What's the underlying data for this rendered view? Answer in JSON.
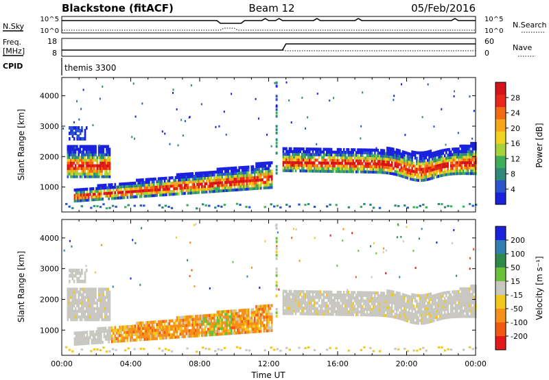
{
  "header": {
    "station": "Blackstone (fitACF)",
    "beam": "Beam 12",
    "date": "05/Feb/2016"
  },
  "strip_labels": {
    "nsky": "N.Sky",
    "nsearch": "N.Search",
    "freq_line1": "Freq.",
    "freq_line2": "[MHz]",
    "nave": "Nave",
    "cpid": "CPID",
    "cpid_value": "themis 3300",
    "left_ticks_nsky": [
      "10^5",
      "10^0"
    ],
    "right_ticks_nsearch": [
      "10^5",
      "10^0"
    ],
    "left_ticks_freq": [
      "18",
      "8"
    ],
    "right_ticks_nave": [
      "60",
      "0"
    ]
  },
  "chart_data": [
    {
      "type": "heatmap",
      "name": "power-panel",
      "ylabel": "Slant Range [km]",
      "xlabel": "",
      "ylim": [
        180,
        4600
      ],
      "yticks": [
        "1000",
        "2000",
        "3000",
        "4000"
      ],
      "xlim_hours": [
        0,
        24
      ],
      "colorbar": {
        "label": "Power [dB]",
        "ticks": [
          "4",
          "8",
          "12",
          "16",
          "20",
          "24",
          "28"
        ],
        "range": [
          0,
          32
        ],
        "colors": [
          "#1a22dd",
          "#2a55cc",
          "#2f8a7a",
          "#3fae5a",
          "#a8d23a",
          "#f2d21e",
          "#f7a51a",
          "#f26a12",
          "#e8261a",
          "#d4141a"
        ]
      },
      "bands": [
        {
          "t0": 0.3,
          "t1": 2.8,
          "r_start": [
            1300,
            2300
          ],
          "r_end": [
            1300,
            2300
          ],
          "note_value": [
            6,
            28
          ]
        },
        {
          "t0": 0.7,
          "t1": 12.2,
          "r_start": [
            500,
            900
          ],
          "r_end": [
            950,
            1800
          ],
          "note_value": [
            6,
            30
          ]
        },
        {
          "t0": 12.8,
          "t1": 24,
          "r_start": [
            1500,
            2250
          ],
          "r_end": [
            1400,
            2250
          ],
          "note_value": [
            4,
            26
          ]
        }
      ]
    },
    {
      "type": "heatmap",
      "name": "velocity-panel",
      "ylabel": "Slant Range [km]",
      "xlabel": "Time UT",
      "ylim": [
        180,
        4600
      ],
      "yticks": [
        "1000",
        "2000",
        "3000",
        "4000"
      ],
      "xticks": [
        "00:00",
        "04:00",
        "08:00",
        "12:00",
        "16:00",
        "20:00",
        "00:00"
      ],
      "xlim_hours": [
        0,
        24
      ],
      "colorbar": {
        "label": "Velocity [m s⁻¹]",
        "ticks": [
          "200",
          "100",
          "50",
          "15",
          "-15",
          "-50",
          "-100",
          "-200"
        ],
        "colors": [
          "#1a22dd",
          "#2f7fb0",
          "#2f8a4a",
          "#6cc13a",
          "#c8c8c0",
          "#f2c81e",
          "#f7901a",
          "#f25a12",
          "#e41a1a"
        ]
      }
    }
  ]
}
